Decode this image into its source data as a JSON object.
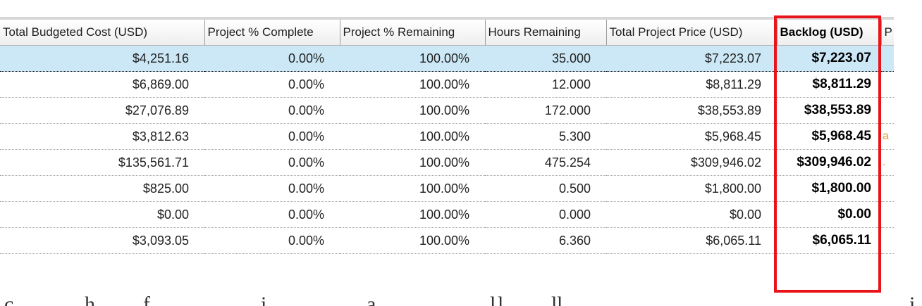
{
  "columns": [
    "Total Budgeted Cost (USD)",
    "Project % Complete",
    "Project %  Remaining",
    "Hours Remaining",
    "Total Project Price (USD)",
    "Backlog (USD)",
    "P"
  ],
  "rows": [
    [
      "$4,251.16",
      "0.00%",
      "100.00%",
      "35.000",
      "$7,223.07",
      "$7,223.07",
      ""
    ],
    [
      "$6,869.00",
      "0.00%",
      "100.00%",
      "12.000",
      "$8,811.29",
      "$8,811.29",
      ""
    ],
    [
      "$27,076.89",
      "0.00%",
      "100.00%",
      "172.000",
      "$38,553.89",
      "$38,553.89",
      ""
    ],
    [
      "$3,812.63",
      "0.00%",
      "100.00%",
      "5.300",
      "$5,968.45",
      "$5,968.45",
      "a"
    ],
    [
      "$135,561.71",
      "0.00%",
      "100.00%",
      "475.254",
      "$309,946.02",
      "$309,946.02",
      "."
    ],
    [
      "$825.00",
      "0.00%",
      "100.00%",
      "0.500",
      "$1,800.00",
      "$1,800.00",
      ""
    ],
    [
      "$0.00",
      "0.00%",
      "100.00%",
      "0.000",
      "$0.00",
      "$0.00",
      ""
    ],
    [
      "$3,093.05",
      "0.00%",
      "100.00%",
      "6.360",
      "$6,065.11",
      "$6,065.11",
      ""
    ]
  ],
  "selected_row": 0,
  "highlight_color": "#e8141a",
  "selection_color": "#cce8f6",
  "bottom_fragments": [
    "c",
    "h",
    "f",
    "i",
    "a",
    "l",
    "l",
    "l",
    "l",
    "i"
  ]
}
